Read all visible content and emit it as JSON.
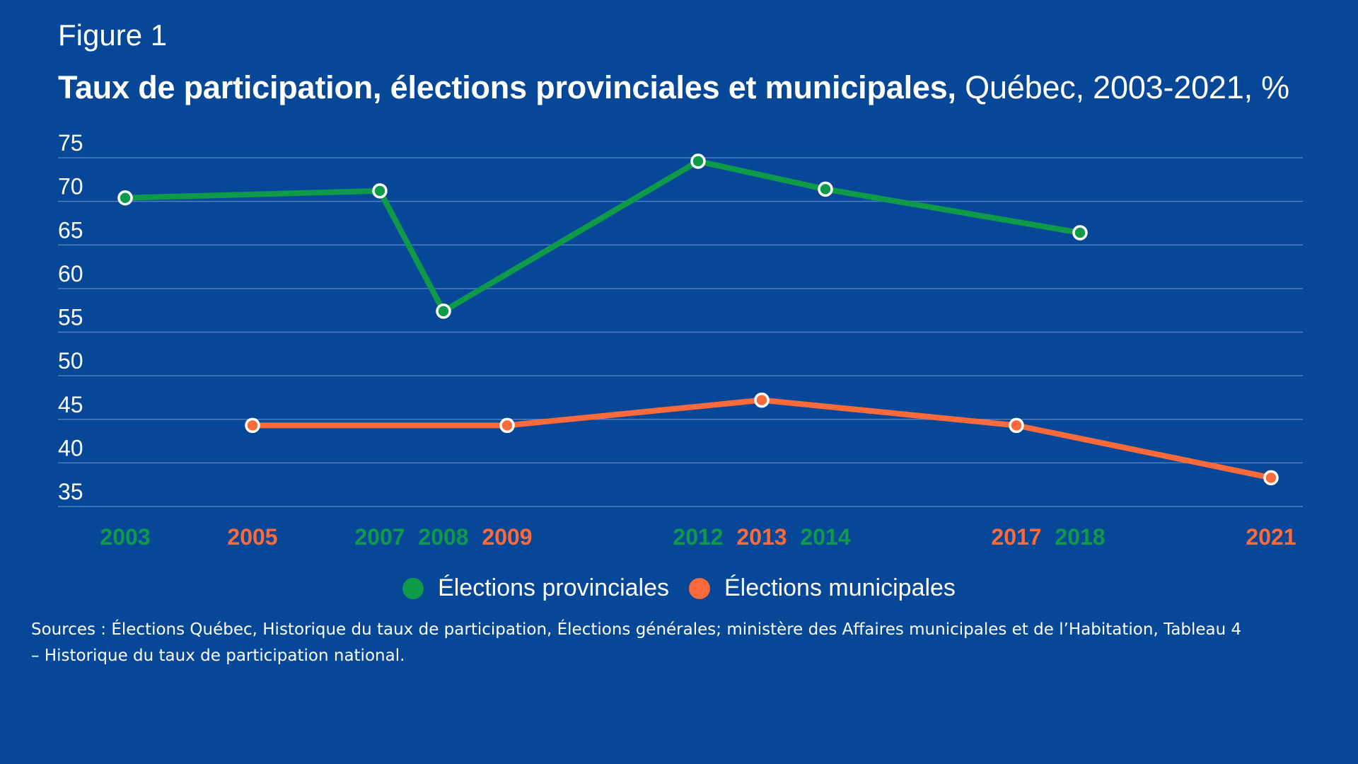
{
  "figure_label": "Figure 1",
  "title_bold": "Taux de participation, élections provinciales et municipales,",
  "title_light": "Québec, 2003-2021, %",
  "colors": {
    "background": "#074797",
    "provincial": "#0F9A4A",
    "municipal": "#FB6A3A",
    "grid": "#4F7EC0",
    "text": "#FFFFFF"
  },
  "chart_data": {
    "type": "line",
    "title": "Taux de participation, élections provinciales et municipales, Québec, 2003-2021, %",
    "xlabel": "",
    "ylabel": "%",
    "ylim": [
      35,
      75
    ],
    "yticks": [
      75,
      70,
      65,
      60,
      55,
      50,
      45,
      40,
      35
    ],
    "grid": true,
    "xlim": [
      2003,
      2021
    ],
    "x_ticks": [
      {
        "label": "2003",
        "year": 2003,
        "series": "provincial"
      },
      {
        "label": "2005",
        "year": 2005,
        "series": "municipal"
      },
      {
        "label": "2007",
        "year": 2007,
        "series": "provincial"
      },
      {
        "label": "2008",
        "year": 2008,
        "series": "provincial"
      },
      {
        "label": "2009",
        "year": 2009,
        "series": "municipal"
      },
      {
        "label": "2012",
        "year": 2012,
        "series": "provincial"
      },
      {
        "label": "2013",
        "year": 2013,
        "series": "municipal"
      },
      {
        "label": "2014",
        "year": 2014,
        "series": "provincial"
      },
      {
        "label": "2017",
        "year": 2017,
        "series": "municipal"
      },
      {
        "label": "2018",
        "year": 2018,
        "series": "provincial"
      },
      {
        "label": "2021",
        "year": 2021,
        "series": "municipal"
      }
    ],
    "series": [
      {
        "id": "provincial",
        "name": "Élections provinciales",
        "points": [
          {
            "x": 2003,
            "y": 70.4
          },
          {
            "x": 2007,
            "y": 71.2
          },
          {
            "x": 2008,
            "y": 57.4
          },
          {
            "x": 2012,
            "y": 74.6
          },
          {
            "x": 2014,
            "y": 71.4
          },
          {
            "x": 2018,
            "y": 66.4
          }
        ]
      },
      {
        "id": "municipal",
        "name": "Élections municipales",
        "points": [
          {
            "x": 2005,
            "y": 44.3
          },
          {
            "x": 2009,
            "y": 44.3
          },
          {
            "x": 2013,
            "y": 47.2
          },
          {
            "x": 2017,
            "y": 44.3
          },
          {
            "x": 2021,
            "y": 38.3
          }
        ]
      }
    ],
    "legend_position": "bottom-center"
  },
  "legend": {
    "provincial_label": "Élections provinciales",
    "municipal_label": "Élections municipales"
  },
  "sources": "Sources : Élections Québec, Historique du taux de participation, Élections générales; ministère des Affaires municipales et de l’Habitation, Tableau 4 – Historique du taux de participation national."
}
